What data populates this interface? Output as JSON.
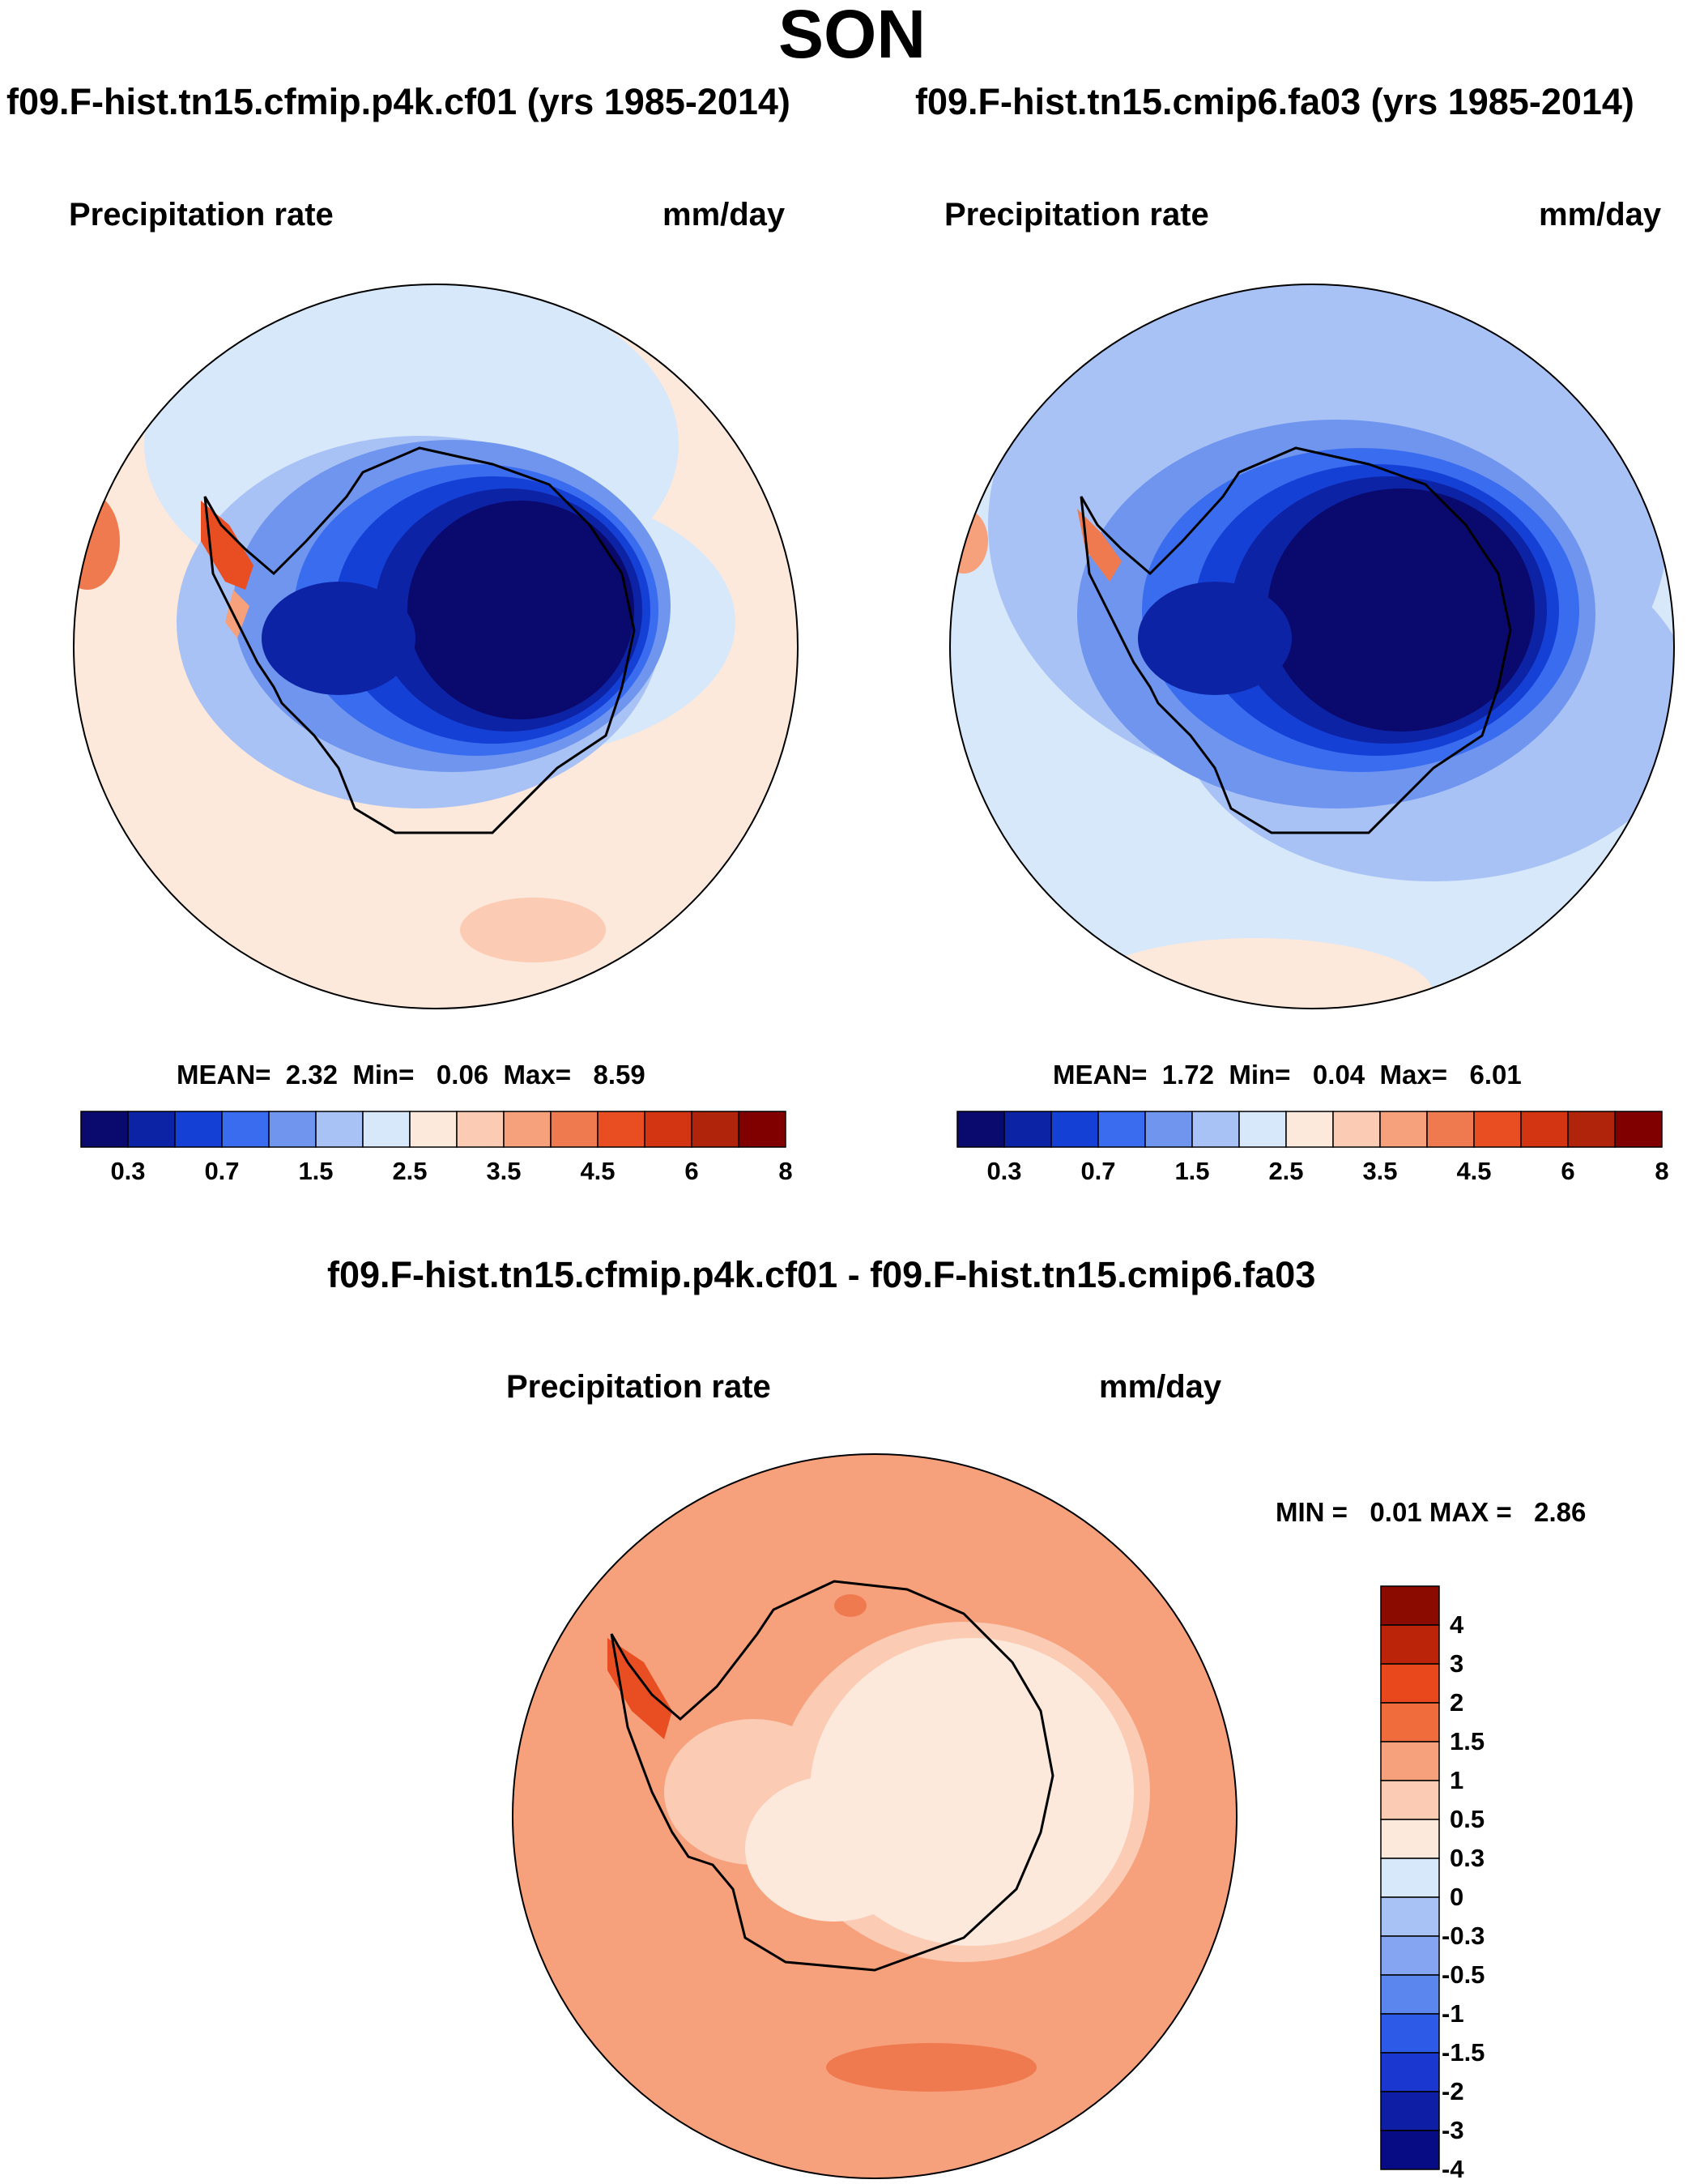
{
  "title": "SON",
  "variable": "Precipitation rate",
  "units": "mm/day",
  "panels": [
    {
      "title": "f09.F-hist.tn15.cfmip.p4k.cf01 (yrs 1985-2014)",
      "stats": "MEAN=  2.32  Min=   0.06  Max=   8.59",
      "mean": 2.32,
      "min": 0.06,
      "max": 8.59
    },
    {
      "title": "f09.F-hist.tn15.cmip6.fa03 (yrs 1985-2014)",
      "stats": "MEAN=  1.72  Min=   0.04  Max=   6.01",
      "mean": 1.72,
      "min": 0.04,
      "max": 6.01
    },
    {
      "title": "f09.F-hist.tn15.cfmip.p4k.cf01 - f09.F-hist.tn15.cmip6.fa03",
      "stats": "MIN =   0.01 MAX =   2.86",
      "min": 0.01,
      "max": 2.86
    }
  ],
  "colorbar_main": {
    "colors": [
      "#0a0a6e",
      "#0d23a6",
      "#1540d6",
      "#3a6cf0",
      "#6f95ef",
      "#a9c2f5",
      "#d7e8fa",
      "#fde9dc",
      "#fbcbb4",
      "#f6a07c",
      "#f07a4f",
      "#e84e22",
      "#d33412",
      "#b1240c",
      "#800000"
    ],
    "labels": [
      "0.3",
      "0.7",
      "1.5",
      "2.5",
      "3.5",
      "4.5",
      "6",
      "8"
    ]
  },
  "colorbar_diff": {
    "colors_top_to_bottom": [
      "#8b0b00",
      "#bb2409",
      "#e8481c",
      "#f06c3c",
      "#f6a07c",
      "#fbcbb4",
      "#fde9dc",
      "#d7e8fa",
      "#a9c2f5",
      "#85a5f2",
      "#5a86ee",
      "#2e5ae8",
      "#1a37cf",
      "#0e1fa6",
      "#070c84"
    ],
    "labels_top_to_bottom": [
      "4",
      "3",
      "2",
      "1.5",
      "1",
      "0.5",
      "0.3",
      "0",
      "-0.3",
      "-0.5",
      "-1",
      "-1.5",
      "-2",
      "-3",
      "-4"
    ]
  }
}
